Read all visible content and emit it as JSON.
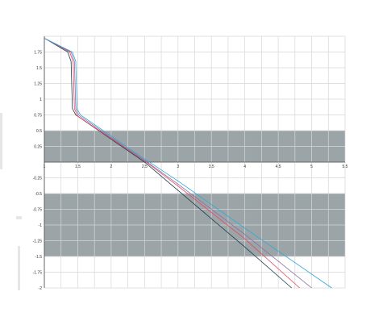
{
  "chart_data": {
    "type": "line",
    "title": "",
    "xlabel": "",
    "ylabel": "",
    "xlim": [
      1,
      5.5
    ],
    "ylim": [
      -2,
      2
    ],
    "grid": true,
    "legend": "none",
    "x_tick_labels": [
      "1",
      "1.5",
      "2",
      "2.5",
      "3",
      "3.5",
      "4",
      "4.5",
      "5",
      "5.5"
    ],
    "x_tick_values": [
      1,
      1.5,
      2,
      2.5,
      3,
      3.5,
      4,
      4.5,
      5,
      5.5
    ],
    "y_tick_labels": [
      "1.75",
      "1.5",
      "1.25",
      "1",
      "0.75",
      "0.5",
      "0.25",
      "-0.25",
      "-0.5",
      "-0.75",
      "-1",
      "-1.25",
      "-1.5",
      "-1.75",
      "-2"
    ],
    "y_tick_values": [
      1.75,
      1.5,
      1.25,
      1,
      0.75,
      0.5,
      0.25,
      -0.25,
      -0.5,
      -0.75,
      -1,
      -1.25,
      -1.5,
      -1.75,
      -2
    ],
    "bands": [
      {
        "y_from": 0,
        "y_to": 0.5,
        "color": "#7f8c8f"
      },
      {
        "y_from": -1.5,
        "y_to": -0.5,
        "color": "#7f8c8f"
      }
    ],
    "series": [
      {
        "color": "#1f3b4d",
        "points": [
          [
            1,
            1.97
          ],
          [
            1.35,
            1.75
          ],
          [
            1.4,
            1.6
          ],
          [
            1.42,
            0.85
          ],
          [
            1.47,
            0.75
          ],
          [
            2.5,
            0.0
          ],
          [
            3,
            -0.45
          ],
          [
            4,
            -1.35
          ],
          [
            4.7,
            -2.0
          ]
        ]
      },
      {
        "color": "#e8475d",
        "points": [
          [
            1,
            1.97
          ],
          [
            1.38,
            1.75
          ],
          [
            1.43,
            1.6
          ],
          [
            1.45,
            0.85
          ],
          [
            1.5,
            0.73
          ],
          [
            2.5,
            0.02
          ],
          [
            3,
            -0.38
          ],
          [
            4,
            -1.22
          ],
          [
            4.82,
            -2.0
          ]
        ]
      },
      {
        "color": "#8a6fa8",
        "points": [
          [
            1,
            1.97
          ],
          [
            1.4,
            1.75
          ],
          [
            1.45,
            1.6
          ],
          [
            1.47,
            0.85
          ],
          [
            1.52,
            0.74
          ],
          [
            2.5,
            0.03
          ],
          [
            3,
            -0.35
          ],
          [
            4,
            -1.15
          ],
          [
            5.0,
            -2.0
          ]
        ]
      },
      {
        "color": "#31a8d8",
        "points": [
          [
            1,
            1.97
          ],
          [
            1.42,
            1.75
          ],
          [
            1.47,
            1.6
          ],
          [
            1.49,
            0.85
          ],
          [
            1.54,
            0.75
          ],
          [
            2.5,
            0.05
          ],
          [
            3,
            -0.3
          ],
          [
            4,
            -1.05
          ],
          [
            5.3,
            -2.0
          ]
        ]
      }
    ]
  }
}
